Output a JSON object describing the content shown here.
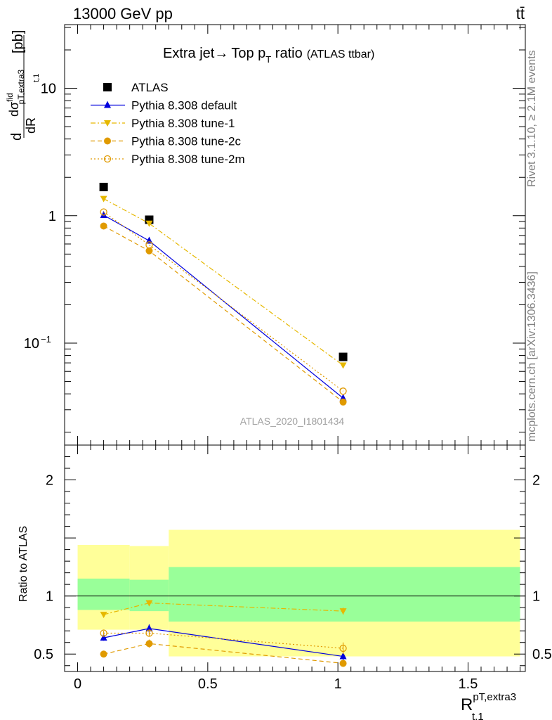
{
  "header": {
    "left": "13000 GeV pp",
    "right": "tt̄"
  },
  "side": {
    "rivet": "Rivet 3.1.10, ≥ 2.1M events",
    "mcplots": "mcplots.cern.ch [arXiv:1306.3436]"
  },
  "chart_data": {
    "type": "scatter",
    "title": {
      "main": "Extra jet",
      "arrow": "→",
      "mid": "Top p",
      "sub": "T",
      "tail": " ratio",
      "small": "(ATLAS ttbar)"
    },
    "watermark": "ATLAS_2020_I1801434",
    "xlabel": {
      "main": "R",
      "sup": "pT,extra3",
      "sub": "t,1"
    },
    "ylabel": {
      "d": "d",
      "sigma": "dσ",
      "sigma_sup": "fid",
      "sigma_sub": "pT,extra3",
      "dr": "dR",
      "dr_sub": "t,1",
      "unit": "[pb]"
    },
    "ratio_ylabel": "Ratio to ATLAS",
    "xlim": [
      -0.05,
      1.72
    ],
    "ylim_main": [
      0.01585,
      31.6
    ],
    "ylim_ratio": [
      0.35,
      2.3
    ],
    "x_ticks": [
      "0",
      "0.5",
      "1",
      "1.5"
    ],
    "x_tick_values": [
      0,
      0.5,
      1,
      1.5
    ],
    "y_ticks_main": [
      {
        "value": 10,
        "label": "10"
      },
      {
        "value": 1,
        "label": "1"
      },
      {
        "value": 0.1,
        "label": "10",
        "sup": "−1"
      }
    ],
    "y_ticks_ratio": [
      {
        "value": 2,
        "label": "2"
      },
      {
        "value": 1,
        "label": "1"
      },
      {
        "value": 0.5,
        "label": "0.5"
      }
    ],
    "x": [
      0.1,
      0.275,
      1.02
    ],
    "bins": [
      [
        0,
        0.2
      ],
      [
        0.2,
        0.35
      ],
      [
        0.35,
        1.7
      ]
    ],
    "band_inner": [
      [
        0.88,
        1.15
      ],
      [
        0.87,
        1.14
      ],
      [
        0.78,
        1.25
      ]
    ],
    "band_outer": [
      [
        0.71,
        1.44
      ],
      [
        0.71,
        1.43
      ],
      [
        0.48,
        1.57
      ]
    ],
    "series": [
      {
        "name": "ATLAS",
        "color": "#000000",
        "marker": "square",
        "values": [
          1.68,
          0.93,
          0.078
        ],
        "ratio": [
          1,
          1,
          1
        ]
      },
      {
        "name": "Pythia 8.308 default",
        "color": "#0000dd",
        "marker": "triangle-up",
        "dash": "",
        "values": [
          1.01,
          0.635,
          0.037
        ],
        "ratio": [
          0.64,
          0.72,
          0.48
        ],
        "ratio_err": [
          0.025,
          0.035,
          0.03
        ]
      },
      {
        "name": "Pythia 8.308 tune-1",
        "color": "#e6b800",
        "marker": "triangle-down",
        "dash": "7 3 2 3",
        "values": [
          1.36,
          0.87,
          0.067
        ],
        "ratio": [
          0.84,
          0.94,
          0.87
        ],
        "ratio_err": [
          0.02,
          0.025,
          0.03
        ]
      },
      {
        "name": "Pythia 8.308 tune-2c",
        "color": "#e09a00",
        "marker": "circle",
        "dash": "6 4",
        "values": [
          0.83,
          0.53,
          0.0345
        ],
        "ratio": [
          0.5,
          0.59,
          0.42
        ],
        "ratio_err": [
          0.025,
          0.035,
          0.03
        ]
      },
      {
        "name": "Pythia 8.308 tune-2m",
        "color": "#e09a00",
        "marker": "circle-open",
        "dash": "2 3",
        "values": [
          1.07,
          0.59,
          0.042
        ],
        "ratio": [
          0.68,
          0.68,
          0.55
        ],
        "ratio_err": [
          0.02,
          0.025,
          0.05
        ]
      }
    ],
    "legend_position": "top-left",
    "colors": {
      "band_inner": "#99ff99",
      "band_outer": "#ffff99"
    }
  }
}
